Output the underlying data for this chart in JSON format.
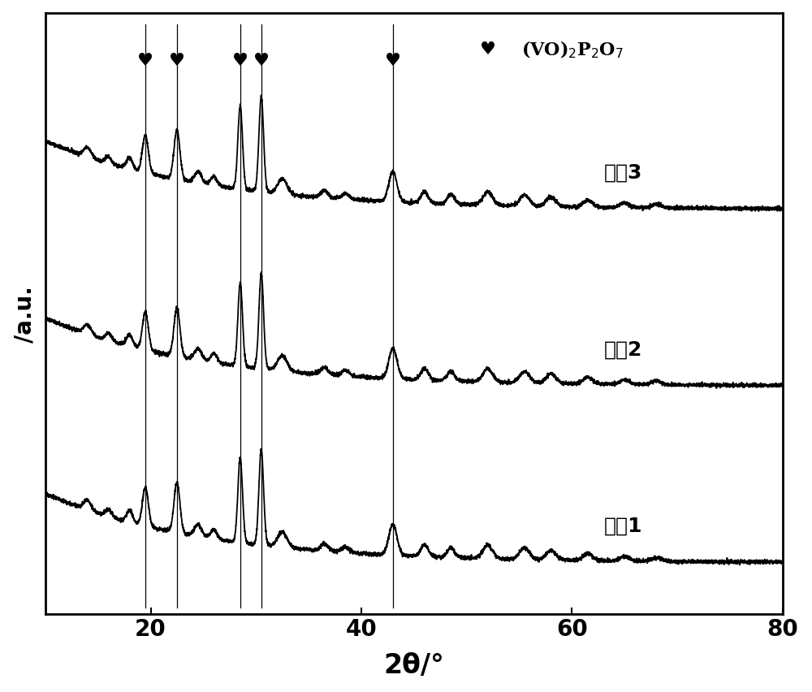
{
  "xlabel": "2θ/°",
  "ylabel": "/a.u.",
  "xlim": [
    10,
    80
  ],
  "xticks": [
    20,
    40,
    60,
    80
  ],
  "legend_label": "(VO)₂P₂O₇",
  "vertical_lines": [
    19.5,
    22.5,
    28.5,
    30.5,
    43.0
  ],
  "heart_positions_x": [
    19.5,
    22.5,
    28.5,
    30.5,
    43.0
  ],
  "sample_labels": [
    "实卙3",
    "实卙2",
    "实卙1"
  ],
  "offsets": [
    0.68,
    0.38,
    0.08
  ],
  "background_color": "#ffffff",
  "line_color": "#000000",
  "peak_positions": [
    14.0,
    16.0,
    18.0,
    19.5,
    22.5,
    24.5,
    26.0,
    28.5,
    30.5,
    32.5,
    36.5,
    38.5,
    43.0,
    46.0,
    48.5,
    52.0,
    55.5,
    58.0,
    61.5,
    65.0,
    68.0
  ],
  "peak_heights": [
    0.025,
    0.018,
    0.03,
    0.1,
    0.13,
    0.03,
    0.025,
    0.22,
    0.25,
    0.04,
    0.018,
    0.015,
    0.08,
    0.03,
    0.025,
    0.035,
    0.03,
    0.025,
    0.018,
    0.012,
    0.01
  ],
  "peak_widths": [
    0.35,
    0.3,
    0.3,
    0.28,
    0.28,
    0.35,
    0.3,
    0.22,
    0.22,
    0.45,
    0.35,
    0.35,
    0.38,
    0.35,
    0.35,
    0.45,
    0.45,
    0.45,
    0.45,
    0.45,
    0.45
  ]
}
